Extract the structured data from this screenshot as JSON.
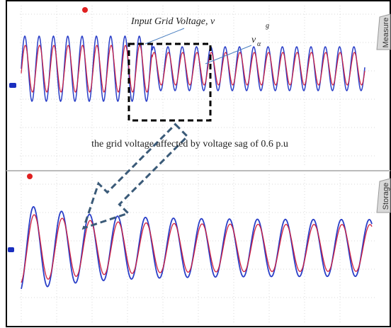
{
  "top_panel": {
    "tab": "Measure",
    "input_label": {
      "text": "Input Grid Voltage, v",
      "subscript": "g"
    },
    "alpha_label": {
      "text": "v",
      "subscript": "α"
    }
  },
  "caption": "the grid voltage affected by voltage sag of 0.6 p.u",
  "bottom_panel": {
    "tab": "Storage"
  }
}
